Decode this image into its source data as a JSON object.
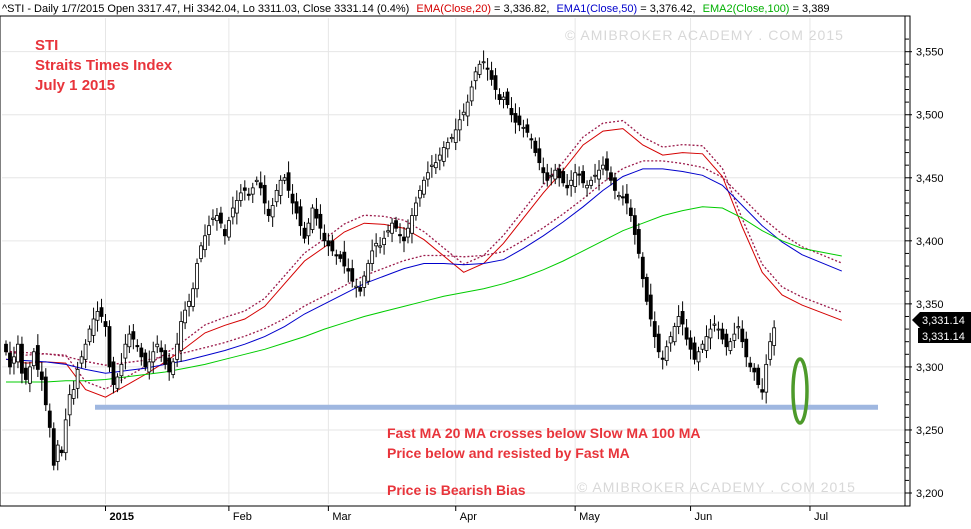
{
  "header": {
    "symbol_text": "^STI - Daily 1/7/2015 Open 3317.47, Hi 3342.04, Lo 3311.03, Close 3331.14 (0.4%)",
    "ema20_label": "EMA(Close,20)",
    "ema20_value": " = 3,336.82,",
    "ema50_label": "EMA1(Close,50)",
    "ema50_value": " = 3,376.42,",
    "ema100_label": "EMA2(Close,100)",
    "ema100_value": " = 3,389"
  },
  "title_lines": [
    "STI",
    "Straits Times Index",
    "July 1 2015"
  ],
  "annotations": [
    "Fast MA 20 MA crosses below Slow MA 100 MA",
    "Price below and resisted by Fast MA",
    "Price is Bearish Bias"
  ],
  "watermark": "© AMIBROKER ACADEMY . COM 2015",
  "price_badges": [
    "3,331.14",
    "3,331.14"
  ],
  "colors": {
    "ema20": "#d40000",
    "ema50": "#0000cc",
    "ema100": "#00cc00",
    "envelope": "#9b1b4b",
    "support_line": "#9fb7e0",
    "highlight": "#4d9a2a",
    "text_red": "#e8343b"
  },
  "chart_data": {
    "type": "candlestick",
    "period": "Daily",
    "x_ticks": [
      "2015",
      "Feb",
      "Mar",
      "Apr",
      "May",
      "Jun",
      "Jul"
    ],
    "y_ticks": [
      3200,
      3250,
      3300,
      3350,
      3400,
      3450,
      3500,
      3550
    ],
    "ylim": [
      3195,
      3575
    ],
    "support_level": 3268,
    "series": [
      {
        "name": "EMA(Close,20)",
        "x": [
          0,
          5,
          10,
          15,
          20,
          25,
          30,
          35,
          40,
          45,
          50,
          55,
          60,
          65,
          70,
          75,
          80,
          85,
          90,
          95,
          100,
          105,
          110,
          115,
          120,
          125,
          130,
          135,
          140,
          145,
          150,
          155,
          160,
          165,
          170,
          175,
          180,
          185,
          190,
          195,
          200,
          210
        ],
        "y": [
          3306,
          3303,
          3304,
          3303,
          3282,
          3276,
          3285,
          3294,
          3304,
          3315,
          3327,
          3333,
          3338,
          3348,
          3366,
          3384,
          3395,
          3407,
          3414,
          3413,
          3410,
          3401,
          3388,
          3375,
          3382,
          3398,
          3418,
          3438,
          3456,
          3476,
          3487,
          3489,
          3476,
          3468,
          3470,
          3469,
          3451,
          3411,
          3375,
          3357,
          3349,
          3337
        ]
      },
      {
        "name": "EMA1(Close,50)",
        "x": [
          0,
          5,
          10,
          15,
          20,
          25,
          30,
          35,
          40,
          45,
          50,
          55,
          60,
          65,
          70,
          75,
          80,
          85,
          90,
          95,
          100,
          105,
          110,
          115,
          120,
          125,
          130,
          135,
          140,
          145,
          150,
          155,
          160,
          165,
          170,
          175,
          180,
          185,
          190,
          195,
          200,
          210
        ],
        "y": [
          3306,
          3305,
          3304,
          3302,
          3298,
          3295,
          3297,
          3299,
          3302,
          3305,
          3309,
          3313,
          3318,
          3324,
          3332,
          3342,
          3350,
          3358,
          3366,
          3372,
          3378,
          3382,
          3382,
          3381,
          3382,
          3385,
          3394,
          3404,
          3415,
          3427,
          3440,
          3451,
          3457,
          3457,
          3455,
          3452,
          3444,
          3428,
          3412,
          3399,
          3389,
          3376
        ]
      },
      {
        "name": "EMA2(Close,100)",
        "x": [
          0,
          5,
          10,
          15,
          20,
          25,
          30,
          35,
          40,
          45,
          50,
          55,
          60,
          65,
          70,
          75,
          80,
          85,
          90,
          95,
          100,
          105,
          110,
          115,
          120,
          125,
          130,
          135,
          140,
          145,
          150,
          155,
          160,
          165,
          170,
          175,
          180,
          185,
          190,
          195,
          200,
          210
        ],
        "y": [
          3288,
          3288,
          3288,
          3289,
          3289,
          3290,
          3292,
          3294,
          3296,
          3299,
          3302,
          3306,
          3310,
          3314,
          3319,
          3324,
          3330,
          3335,
          3340,
          3344,
          3348,
          3352,
          3356,
          3359,
          3362,
          3366,
          3371,
          3377,
          3384,
          3392,
          3400,
          3408,
          3414,
          3420,
          3424,
          3427,
          3426,
          3418,
          3408,
          3400,
          3394,
          3388
        ]
      }
    ]
  }
}
